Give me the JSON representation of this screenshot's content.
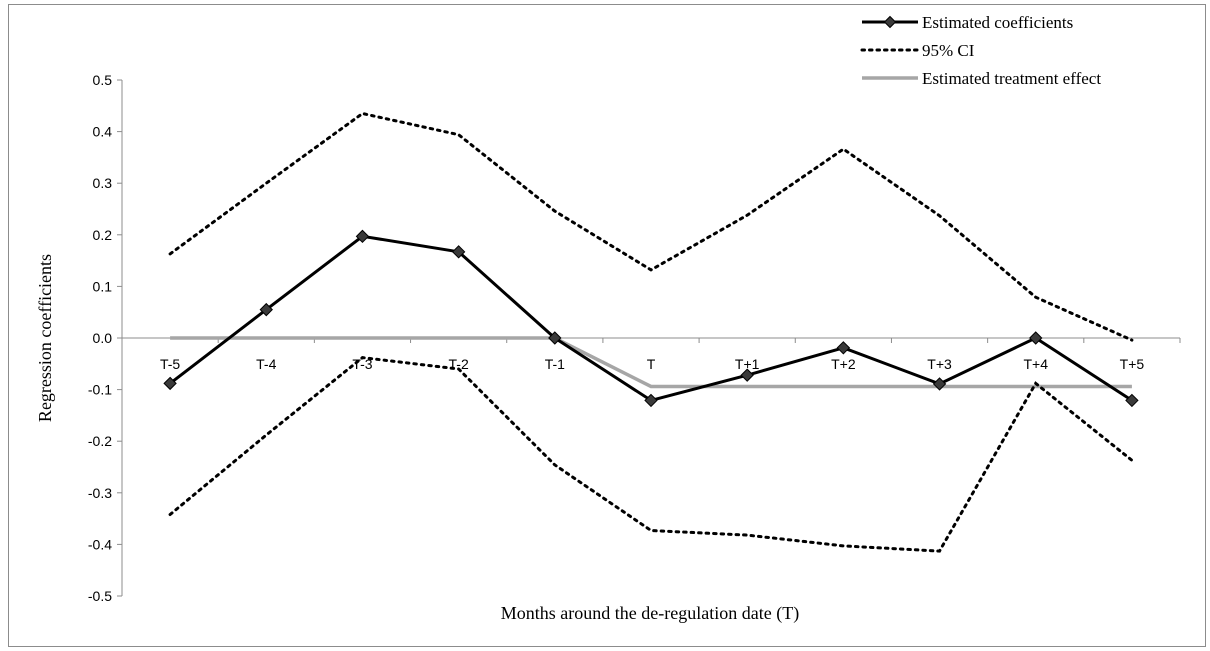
{
  "chart_data": {
    "type": "line",
    "title": "",
    "xlabel": "Months around the de-regulation date (T)",
    "ylabel": "Regression coefficients",
    "categories": [
      "T-5",
      "T-4",
      "T-3",
      "T-2",
      "T-1",
      "T",
      "T+1",
      "T+2",
      "T+3",
      "T+4",
      "T+5"
    ],
    "ylim": [
      -0.5,
      0.5
    ],
    "yticks": [
      "0.5",
      "0.4",
      "0.3",
      "0.2",
      "0.1",
      "0.0",
      "-0.1",
      "-0.2",
      "-0.3",
      "-0.4",
      "-0.5"
    ],
    "ytick_values": [
      0.5,
      0.4,
      0.3,
      0.2,
      0.1,
      0.0,
      -0.1,
      -0.2,
      -0.3,
      -0.4,
      -0.5
    ],
    "grid": false,
    "legend_position": "top-right",
    "series": [
      {
        "name": "Estimated coefficients",
        "style": "solid-marker",
        "color": "#000000",
        "values": [
          -0.088,
          0.055,
          0.197,
          0.167,
          0.0,
          -0.121,
          -0.072,
          -0.019,
          -0.089,
          0.0,
          -0.121
        ]
      },
      {
        "name": "95% CI",
        "style": "dotted",
        "color": "#000000",
        "values": [
          0.163,
          0.3,
          0.435,
          0.394,
          0.246,
          0.132,
          0.238,
          0.366,
          0.237,
          0.079,
          -0.004
        ]
      },
      {
        "name": "95% CI lower",
        "style": "dotted",
        "color": "#000000",
        "values": [
          -0.342,
          -0.188,
          -0.038,
          -0.06,
          -0.246,
          -0.373,
          -0.382,
          -0.403,
          -0.413,
          -0.088,
          -0.237
        ]
      },
      {
        "name": "Estimated treatment effect",
        "style": "solid",
        "color": "#a6a6a6",
        "values": [
          0.0,
          0.0,
          0.0,
          0.0,
          0.0,
          -0.094,
          -0.094,
          -0.094,
          -0.094,
          -0.094,
          -0.094
        ]
      }
    ]
  }
}
